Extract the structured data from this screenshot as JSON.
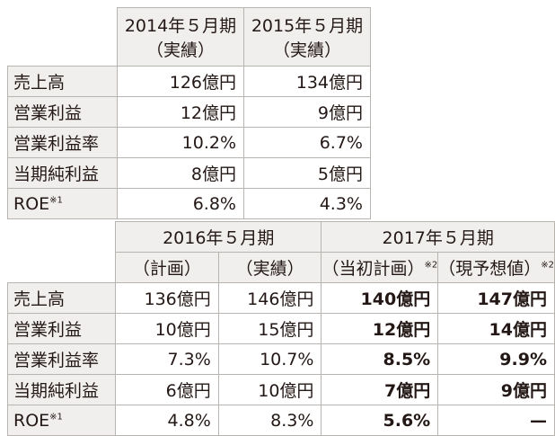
{
  "table1": {
    "headers": [
      {
        "line1": "2014年５月期",
        "line2": "（実績）"
      },
      {
        "line1": "2015年５月期",
        "line2": "（実績）"
      }
    ],
    "rows": [
      {
        "label": "売上高",
        "sup": "",
        "values": [
          "126億円",
          "134億円"
        ]
      },
      {
        "label": "営業利益",
        "sup": "",
        "values": [
          "12億円",
          "9億円"
        ]
      },
      {
        "label": "営業利益率",
        "sup": "",
        "values": [
          "10.2%",
          "6.7%"
        ]
      },
      {
        "label": "当期純利益",
        "sup": "",
        "values": [
          "8億円",
          "5億円"
        ]
      },
      {
        "label": "ROE",
        "sup": "※1",
        "values": [
          "6.8%",
          "4.3%"
        ]
      }
    ]
  },
  "table2": {
    "year_headers": [
      "2016年５月期",
      "2017年５月期"
    ],
    "sub_headers": [
      {
        "text": "（計画）",
        "sup": ""
      },
      {
        "text": "（実績）",
        "sup": ""
      },
      {
        "text": "（当初計画）",
        "sup": "※2"
      },
      {
        "text": "（現予想値）",
        "sup": "※2"
      }
    ],
    "rows": [
      {
        "label": "売上高",
        "sup": "",
        "values": [
          "136億円",
          "146億円",
          "140億円",
          "147億円"
        ]
      },
      {
        "label": "営業利益",
        "sup": "",
        "values": [
          "10億円",
          "15億円",
          "12億円",
          "14億円"
        ]
      },
      {
        "label": "営業利益率",
        "sup": "",
        "values": [
          "7.3%",
          "10.7%",
          "8.5%",
          "9.9%"
        ]
      },
      {
        "label": "当期純利益",
        "sup": "",
        "values": [
          "6億円",
          "10億円",
          "7億円",
          "9億円"
        ]
      },
      {
        "label": "ROE",
        "sup": "※1",
        "values": [
          "4.8%",
          "8.3%",
          "5.6%",
          "—"
        ]
      }
    ]
  },
  "colors": {
    "header_bg": "#f1efee",
    "border": "#b8b4b0",
    "text": "#231815"
  }
}
